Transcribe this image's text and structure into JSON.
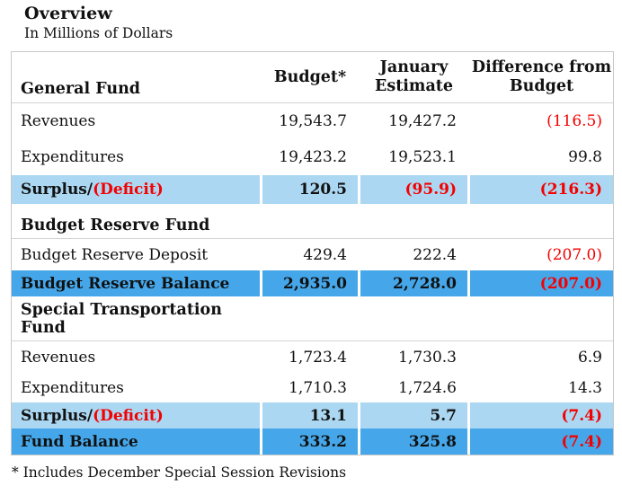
{
  "page": {
    "title": "Overview",
    "subtitle": "In Millions of Dollars",
    "footnote": "* Includes December Special Session Revisions"
  },
  "table": {
    "columns": [
      "Budget*",
      "January Estimate",
      "Difference from Budget"
    ],
    "sections": [
      {
        "name": "General Fund",
        "rows": [
          {
            "label": "Revenues",
            "budget": "19,543.7",
            "estimate": "19,427.2",
            "difference": "(116.5)"
          },
          {
            "label": "Expenditures",
            "budget": "19,423.2",
            "estimate": "19,523.1",
            "difference": "99.8"
          },
          {
            "label_parts": [
              "Surplus/",
              "(Deficit)"
            ],
            "budget": "120.5",
            "estimate": "(95.9)",
            "difference": "(216.3)"
          }
        ]
      },
      {
        "name": "Budget Reserve Fund",
        "rows": [
          {
            "label": "Budget Reserve Deposit",
            "budget": "429.4",
            "estimate": "222.4",
            "difference": "(207.0)"
          },
          {
            "label": "Budget Reserve Balance",
            "budget": "2,935.0",
            "estimate": "2,728.0",
            "difference": "(207.0)"
          }
        ]
      },
      {
        "name": "Special Transportation Fund",
        "rows": [
          {
            "label": "Revenues",
            "budget": "1,723.4",
            "estimate": "1,730.3",
            "difference": "6.9"
          },
          {
            "label": "Expenditures",
            "budget": "1,710.3",
            "estimate": "1,724.6",
            "difference": "14.3"
          },
          {
            "label_parts": [
              "Surplus/",
              "(Deficit)"
            ],
            "budget": "13.1",
            "estimate": "5.7",
            "difference": "(7.4)"
          },
          {
            "label": "Fund Balance",
            "budget": "333.2",
            "estimate": "325.8",
            "difference": "(7.4)"
          }
        ]
      }
    ]
  },
  "colors": {
    "row_highlight_light": "#ABD7F2",
    "row_highlight_dark": "#45A7EA",
    "negative": "#F40000",
    "table_border": "#C8C8C8",
    "rule_line": "#D4D4D4"
  }
}
